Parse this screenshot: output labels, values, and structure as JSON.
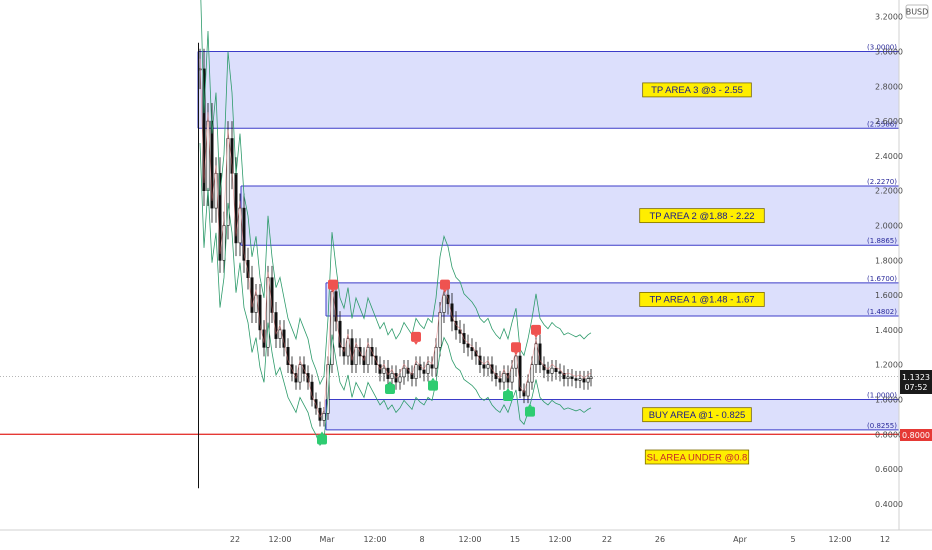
{
  "symbol": "BUSD",
  "last_price": "1.1323",
  "countdown": "07:52",
  "chart_data": {
    "type": "candlestick",
    "y_ticks": [
      "0.4000",
      "0.6000",
      "0.8000",
      "1.0000",
      "1.2000",
      "1.4000",
      "1.6000",
      "1.8000",
      "2.0000",
      "2.2000",
      "2.4000",
      "2.6000",
      "2.8000",
      "3.0000",
      "3.2000"
    ],
    "x_ticks": [
      "22",
      "12:00",
      "Mar",
      "12:00",
      "8",
      "12:00",
      "15",
      "12:00",
      "22",
      "26",
      "Apr",
      "5",
      "12:00",
      "12"
    ],
    "ylim": [
      0.3,
      3.25
    ],
    "zones": [
      {
        "low": 2.5586,
        "high": 3.0,
        "label": "TP AREA 3 @3 - 2.55",
        "low_text": "(2.5586)",
        "high_text": "(3.0000)"
      },
      {
        "low": 1.8865,
        "high": 2.227,
        "label": "TP AREA 2 @1.88 - 2.22",
        "low_text": "(1.8865)",
        "high_text": "(2.2270)"
      },
      {
        "low": 1.4802,
        "high": 1.67,
        "label": "TP AREA 1 @1.48 - 1.67",
        "low_text": "(1.4802)",
        "high_text": "(1.6700)"
      },
      {
        "low": 0.8255,
        "high": 1.0,
        "label": "BUY AREA @1 - 0.825",
        "low_text": "(0.8255)",
        "high_text": "(1.0000)"
      }
    ],
    "stop_loss": {
      "value": 0.8,
      "label": "SL AREA UNDER @0.8",
      "text": "0.8000"
    },
    "price_line": 1.1323,
    "colors": {
      "zone_fill": "#d6d9fb",
      "zone_border": "#3b3bc8",
      "label_bg": "#ffee00",
      "stop": "#e53935",
      "up": "#26a69a",
      "down": "#ef5350",
      "candle": "#111111",
      "band": "#2e9b6b"
    }
  }
}
